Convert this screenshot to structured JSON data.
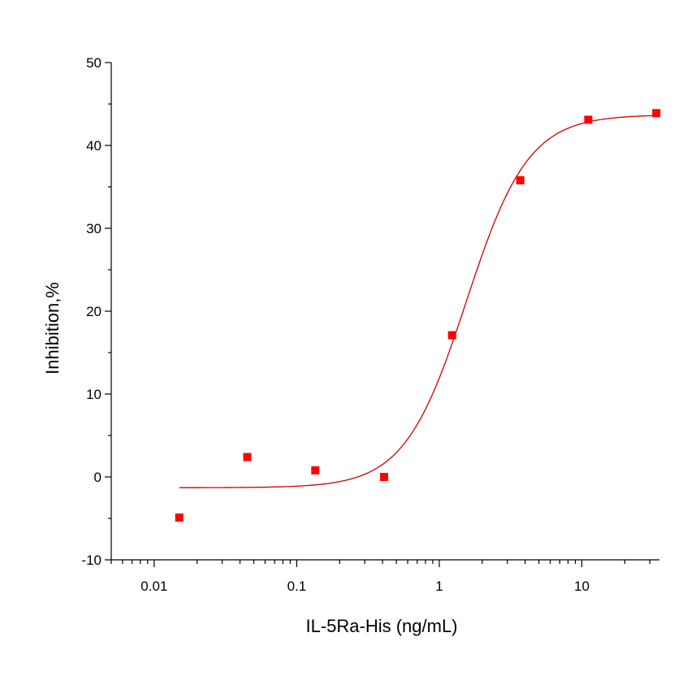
{
  "chart_data": {
    "type": "scatter",
    "xlabel": "IL-5Ra-His (ng/mL)",
    "ylabel": "Inhibition,%",
    "x_scale": "log",
    "xlim": [
      0.005,
      35
    ],
    "ylim": [
      -10,
      50
    ],
    "x_ticks": [
      "0.01",
      "0.1",
      "1",
      "10"
    ],
    "y_ticks": [
      "-10",
      "0",
      "10",
      "20",
      "30",
      "40",
      "50"
    ],
    "grid": false,
    "legend": "none",
    "series": [
      {
        "marker_color": "#ff0000",
        "points": [
          {
            "x": 0.015,
            "y": -4.9
          },
          {
            "x": 0.045,
            "y": 2.4
          },
          {
            "x": 0.135,
            "y": 0.8
          },
          {
            "x": 0.41,
            "y": 0.0
          },
          {
            "x": 1.23,
            "y": 17.1
          },
          {
            "x": 3.7,
            "y": 35.8
          },
          {
            "x": 11.1,
            "y": 43.1
          },
          {
            "x": 33.3,
            "y": 43.9
          }
        ]
      }
    ],
    "fit_curve": {
      "model": "four-parameter logistic",
      "color": "#cc0000",
      "bottom": -1.3,
      "top": 43.7,
      "ec50": 1.55,
      "hill": 2.0,
      "x_range": [
        0.015,
        33.3
      ]
    }
  }
}
